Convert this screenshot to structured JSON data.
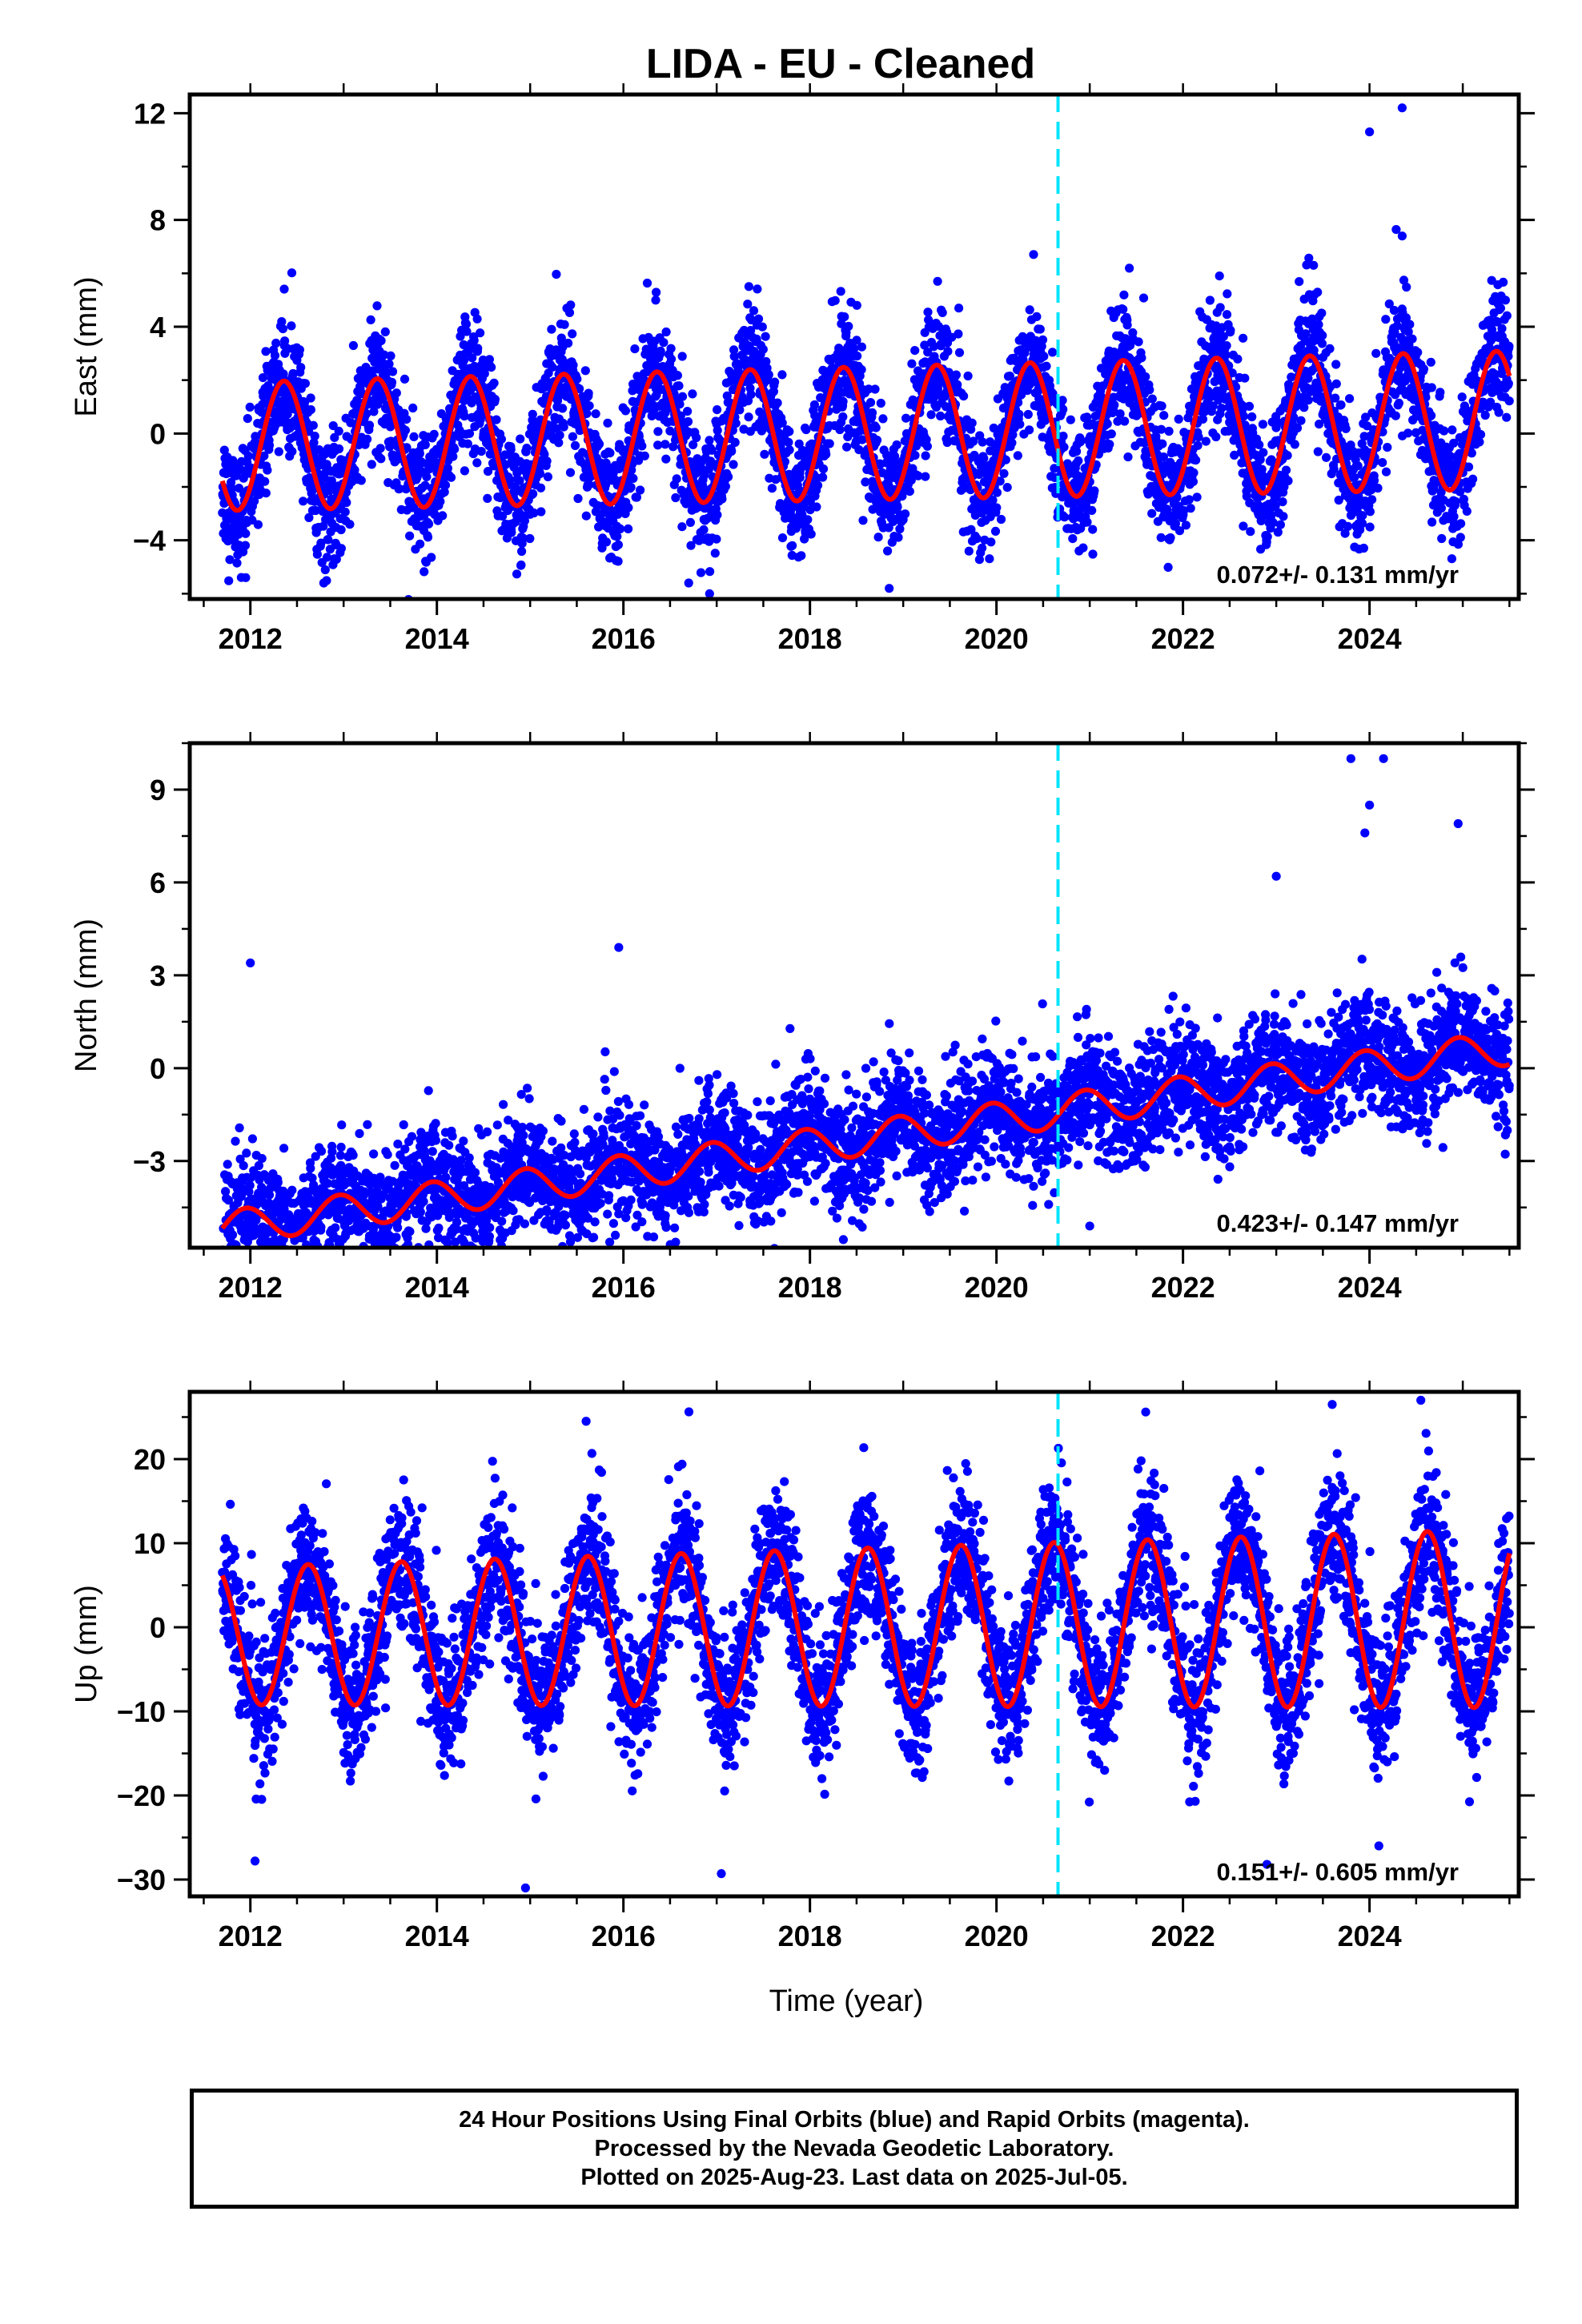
{
  "figure": {
    "title": "LIDA  - EU - Cleaned",
    "xlabel": "Time (year)",
    "footer": [
      "24 Hour Positions Using Final Orbits (blue) and Rapid Orbits (magenta).",
      "Processed by the Nevada Geodetic Laboratory.",
      "Plotted on 2025-Aug-23. Last data on 2025-Jul-05."
    ],
    "colors": {
      "points": "#0000ff",
      "fit": "#ff0000",
      "marker": "#00e5ff",
      "frame": "#000000"
    }
  },
  "chart_data": [
    {
      "type": "scatter",
      "ylabel": "East (mm)",
      "xlim": [
        2011.35,
        2025.6
      ],
      "ylim": [
        -6.2,
        12.7
      ],
      "xticks": [
        "2012",
        "2014",
        "2016",
        "2018",
        "2020",
        "2022",
        "2024"
      ],
      "yticks": [
        "-4",
        "0",
        "4",
        "8",
        "12"
      ],
      "rate_label": "0.072+/- 0.131 mm/yr",
      "vertical_marker_x": 2020.66,
      "model": {
        "offset": 0.0,
        "trend": 0.072,
        "annual_amplitude": 2.4,
        "peak_phase": 0.36,
        "noise_sd": 1.15,
        "amp_growth": 0.08
      },
      "data_range": [
        2011.7,
        2025.5
      ],
      "outliers": [
        {
          "x": 2024.0,
          "y": 11.3
        },
        {
          "x": 2024.35,
          "y": 12.2
        },
        {
          "x": 2024.35,
          "y": 7.4
        },
        {
          "x": 2023.4,
          "y": 6.3
        },
        {
          "x": 2018.85,
          "y": -5.8
        },
        {
          "x": 2016.7,
          "y": -5.6
        },
        {
          "x": 2011.95,
          "y": -5.4
        }
      ]
    },
    {
      "type": "scatter",
      "ylabel": "North (mm)",
      "xlim": [
        2011.35,
        2025.6
      ],
      "ylim": [
        -5.8,
        10.5
      ],
      "xticks": [
        "2012",
        "2014",
        "2016",
        "2018",
        "2020",
        "2022",
        "2024"
      ],
      "yticks": [
        "-3",
        "0",
        "3",
        "6",
        "9"
      ],
      "rate_label": "0.423+/- 0.147 mm/yr",
      "vertical_marker_x": 2020.66,
      "model": {
        "offset": -2.3,
        "trend": 0.423,
        "annual_amplitude": 0.55,
        "peak_phase": 0.95,
        "noise_sd": 0.95,
        "amp_growth": 0.02
      },
      "data_range": [
        2011.7,
        2025.5
      ],
      "outliers": [
        {
          "x": 2023.8,
          "y": 10.0
        },
        {
          "x": 2024.15,
          "y": 10.0
        },
        {
          "x": 2024.0,
          "y": 8.5
        },
        {
          "x": 2024.95,
          "y": 7.9
        },
        {
          "x": 2023.95,
          "y": 7.6
        },
        {
          "x": 2023.0,
          "y": 6.2
        },
        {
          "x": 2021.0,
          "y": -5.1
        },
        {
          "x": 2015.95,
          "y": 3.9
        },
        {
          "x": 2012.0,
          "y": 3.4
        }
      ]
    },
    {
      "type": "scatter",
      "ylabel": "Up (mm)",
      "xlim": [
        2011.35,
        2025.6
      ],
      "ylim": [
        -32.0,
        28.0
      ],
      "xticks": [
        "2012",
        "2014",
        "2016",
        "2018",
        "2020",
        "2022",
        "2024"
      ],
      "yticks": [
        "-30",
        "-20",
        "-10",
        "0",
        "10",
        "20"
      ],
      "rate_label": "0.151+/- 0.605 mm/yr",
      "vertical_marker_x": 2020.66,
      "model": {
        "offset": 0.0,
        "trend": 0.151,
        "annual_amplitude": 8.2,
        "peak_phase": 0.62,
        "noise_sd": 4.2,
        "amp_growth": 0.3
      },
      "data_range": [
        2011.7,
        2025.5
      ],
      "outliers": [
        {
          "x": 2014.95,
          "y": -31.0
        },
        {
          "x": 2017.05,
          "y": -29.3
        },
        {
          "x": 2012.05,
          "y": -27.8
        },
        {
          "x": 2022.9,
          "y": -28.2
        },
        {
          "x": 2024.55,
          "y": 27.0
        },
        {
          "x": 2023.6,
          "y": 26.5
        },
        {
          "x": 2021.6,
          "y": 25.6
        },
        {
          "x": 2015.6,
          "y": 24.5
        },
        {
          "x": 2024.1,
          "y": -26.0
        }
      ]
    }
  ]
}
